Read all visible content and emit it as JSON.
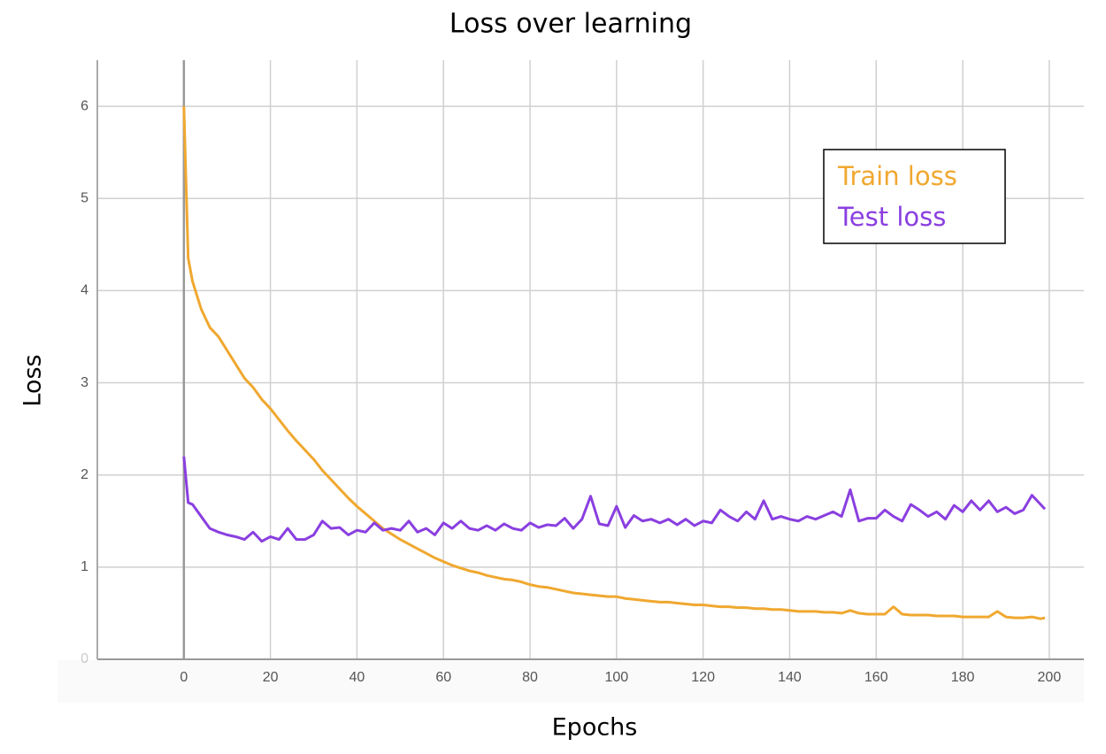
{
  "chart_data": {
    "type": "line",
    "title": "Loss over learning",
    "x_label": "Epochs",
    "y_label": "Loss",
    "x": [
      0,
      1,
      2,
      4,
      6,
      8,
      10,
      12,
      14,
      16,
      18,
      20,
      22,
      24,
      26,
      28,
      30,
      32,
      34,
      36,
      38,
      40,
      42,
      44,
      46,
      48,
      50,
      52,
      54,
      56,
      58,
      60,
      62,
      64,
      66,
      68,
      70,
      72,
      74,
      76,
      78,
      80,
      82,
      84,
      86,
      88,
      90,
      92,
      94,
      96,
      98,
      100,
      102,
      104,
      106,
      108,
      110,
      112,
      114,
      116,
      118,
      120,
      122,
      124,
      126,
      128,
      130,
      132,
      134,
      136,
      138,
      140,
      142,
      144,
      146,
      148,
      150,
      152,
      154,
      156,
      158,
      160,
      162,
      164,
      166,
      168,
      170,
      172,
      174,
      176,
      178,
      180,
      182,
      184,
      186,
      188,
      190,
      192,
      194,
      196,
      198,
      199
    ],
    "series": [
      {
        "name": "Train loss",
        "color": "#f0a830",
        "values": [
          6.0,
          4.35,
          4.1,
          3.8,
          3.6,
          3.5,
          3.35,
          3.2,
          3.05,
          2.95,
          2.82,
          2.72,
          2.6,
          2.48,
          2.37,
          2.27,
          2.17,
          2.05,
          1.95,
          1.85,
          1.75,
          1.66,
          1.58,
          1.5,
          1.42,
          1.36,
          1.3,
          1.25,
          1.2,
          1.15,
          1.1,
          1.06,
          1.02,
          0.99,
          0.96,
          0.94,
          0.91,
          0.89,
          0.87,
          0.86,
          0.84,
          0.81,
          0.79,
          0.78,
          0.76,
          0.74,
          0.72,
          0.71,
          0.7,
          0.69,
          0.68,
          0.68,
          0.66,
          0.65,
          0.64,
          0.63,
          0.62,
          0.62,
          0.61,
          0.6,
          0.59,
          0.59,
          0.58,
          0.57,
          0.57,
          0.56,
          0.56,
          0.55,
          0.55,
          0.54,
          0.54,
          0.53,
          0.52,
          0.52,
          0.52,
          0.51,
          0.51,
          0.5,
          0.53,
          0.5,
          0.49,
          0.49,
          0.49,
          0.57,
          0.49,
          0.48,
          0.48,
          0.48,
          0.47,
          0.47,
          0.47,
          0.46,
          0.46,
          0.46,
          0.46,
          0.52,
          0.46,
          0.45,
          0.45,
          0.46,
          0.44,
          0.45
        ]
      },
      {
        "name": "Test loss",
        "color": "#8a3fe0",
        "values": [
          2.2,
          1.7,
          1.68,
          1.55,
          1.42,
          1.38,
          1.35,
          1.33,
          1.3,
          1.38,
          1.28,
          1.33,
          1.3,
          1.42,
          1.3,
          1.3,
          1.35,
          1.5,
          1.42,
          1.43,
          1.35,
          1.4,
          1.38,
          1.48,
          1.4,
          1.42,
          1.4,
          1.5,
          1.38,
          1.42,
          1.35,
          1.48,
          1.42,
          1.5,
          1.42,
          1.4,
          1.45,
          1.4,
          1.47,
          1.42,
          1.4,
          1.48,
          1.43,
          1.46,
          1.45,
          1.53,
          1.42,
          1.52,
          1.77,
          1.47,
          1.45,
          1.66,
          1.43,
          1.56,
          1.5,
          1.52,
          1.48,
          1.52,
          1.46,
          1.52,
          1.45,
          1.5,
          1.48,
          1.62,
          1.55,
          1.5,
          1.6,
          1.52,
          1.72,
          1.52,
          1.55,
          1.52,
          1.5,
          1.55,
          1.52,
          1.56,
          1.6,
          1.55,
          1.84,
          1.5,
          1.53,
          1.53,
          1.62,
          1.55,
          1.5,
          1.68,
          1.62,
          1.55,
          1.6,
          1.52,
          1.67,
          1.6,
          1.72,
          1.62,
          1.72,
          1.6,
          1.65,
          1.58,
          1.62,
          1.78,
          1.68,
          1.63
        ]
      }
    ],
    "xlim": [
      -20,
      208
    ],
    "ylim": [
      0,
      6.5
    ],
    "xticks": [
      0,
      20,
      40,
      60,
      80,
      100,
      120,
      140,
      160,
      180,
      200
    ],
    "yticks": [
      0,
      1,
      2,
      3,
      4,
      5,
      6
    ],
    "grid": true,
    "legend": "upper right"
  }
}
